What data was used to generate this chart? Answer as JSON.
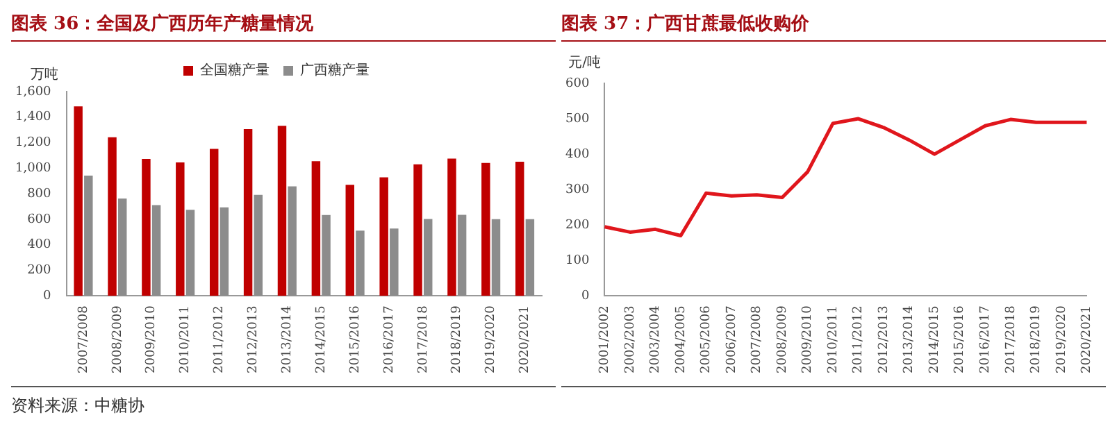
{
  "chart_data": [
    {
      "type": "bar",
      "title": "图表 36：全国及广西历年产糖量情况",
      "ylabel": "万吨",
      "categories": [
        "2007/2008",
        "2008/2009",
        "2009/2010",
        "2010/2011",
        "2011/2012",
        "2012/2013",
        "2013/2014",
        "2014/2015",
        "2015/2016",
        "2016/2017",
        "2017/2018",
        "2018/2019",
        "2019/2020",
        "2020/2021"
      ],
      "series": [
        {
          "name": "全国糖产量",
          "color": "#c00000",
          "values": [
            1484,
            1243,
            1073,
            1045,
            1152,
            1306,
            1332,
            1055,
            870,
            929,
            1031,
            1076,
            1042,
            1051
          ]
        },
        {
          "name": "广西糖产量",
          "color": "#8c8c8c",
          "values": [
            942,
            763,
            711,
            674,
            693,
            792,
            858,
            634,
            511,
            528,
            603,
            635,
            601,
            601
          ]
        }
      ],
      "ylim": [
        0,
        1600
      ],
      "yticks": [
        0,
        200,
        400,
        600,
        800,
        {
          "value": 1000,
          "label": "1,000"
        },
        {
          "value": 1200,
          "label": "1,200"
        },
        {
          "value": 1400,
          "label": "1,400"
        },
        {
          "value": 1600,
          "label": "1,600"
        }
      ],
      "grid": false,
      "legend": "top",
      "annotations": [
        "资料来源：中糖协"
      ]
    },
    {
      "type": "line",
      "title": "图表 37：广西甘蔗最低收购价",
      "ylabel": "元/吨",
      "categories": [
        "2001/2002",
        "2002/2003",
        "2003/2004",
        "2004/2005",
        "2005/2006",
        "2006/2007",
        "2007/2008",
        "2008/2009",
        "2009/2010",
        "2010/2011",
        "2011/2012",
        "2012/2013",
        "2013/2014",
        "2014/2015",
        "2015/2016",
        "2016/2017",
        "2017/2018",
        "2018/2019",
        "2019/2020",
        "2020/2021"
      ],
      "series": [
        {
          "color": "#e0161c",
          "values": [
            195,
            180,
            188,
            170,
            290,
            282,
            285,
            278,
            350,
            487,
            500,
            475,
            440,
            400,
            440,
            480,
            498,
            490,
            490,
            490
          ]
        }
      ],
      "ylim": [
        0,
        600
      ],
      "yticks": [
        0,
        100,
        200,
        300,
        400,
        500,
        600
      ],
      "grid": false,
      "marker": "none",
      "line_style": "solid"
    }
  ]
}
